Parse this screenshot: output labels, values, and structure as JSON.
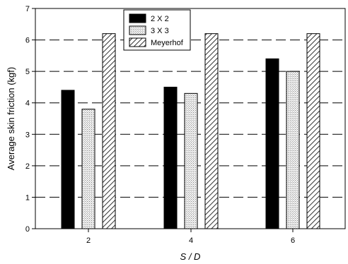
{
  "chart_data": {
    "type": "bar",
    "categories": [
      "2",
      "4",
      "6"
    ],
    "series": [
      {
        "name": "2 X 2",
        "values": [
          4.4,
          4.5,
          5.4
        ],
        "fill": "solid",
        "color": "#000000"
      },
      {
        "name": "3 X 3",
        "values": [
          3.8,
          4.3,
          5.0
        ],
        "fill": "dotted",
        "color": "#d8d8d8"
      },
      {
        "name": "Meyerhof",
        "values": [
          6.2,
          6.2,
          6.2
        ],
        "fill": "diagonal-hatch",
        "color": "#555555"
      }
    ],
    "xlabel": "S / D",
    "ylabel": "Average skin friction (kgf)",
    "ylim": [
      0,
      7
    ],
    "yticks": [
      0,
      1,
      2,
      3,
      4,
      5,
      6,
      7
    ],
    "grid": "dashed horizontal",
    "legend_position": "top-center"
  }
}
